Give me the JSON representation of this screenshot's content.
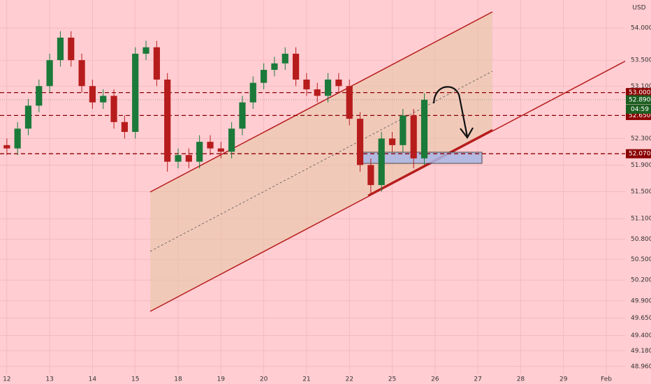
{
  "chart_data": {
    "type": "candlestick",
    "currency": "USD",
    "log_scale": true,
    "grid": true,
    "up_color": "#1b7a3a",
    "down_color": "#b71c1c",
    "x": [
      0,
      0.25,
      0.5,
      0.75,
      1,
      1.25,
      1.5,
      1.75,
      2,
      2.25,
      2.5,
      2.75,
      3,
      3.25,
      3.5,
      3.75,
      4,
      4.25,
      4.5,
      4.75,
      5,
      5.25,
      5.5,
      5.75,
      6,
      6.25,
      6.5,
      6.75,
      7,
      7.25,
      7.5,
      7.75,
      8,
      8.25,
      8.5,
      8.75,
      9,
      9.25,
      9.5,
      9.75
    ],
    "open": [
      52.2,
      52.15,
      52.45,
      52.8,
      53.1,
      53.5,
      53.85,
      53.5,
      53.1,
      52.85,
      52.95,
      52.55,
      52.4,
      53.6,
      53.7,
      53.2,
      51.95,
      52.05,
      51.95,
      52.25,
      52.15,
      52.1,
      52.45,
      52.85,
      53.15,
      53.35,
      53.45,
      53.6,
      53.2,
      53.05,
      52.95,
      53.2,
      53.1,
      52.6,
      51.9,
      51.6,
      52.3,
      52.2,
      52.65,
      52.0
    ],
    "high": [
      52.3,
      52.55,
      52.9,
      53.2,
      53.6,
      53.95,
      53.95,
      53.6,
      53.2,
      53.05,
      53.05,
      52.65,
      53.7,
      53.8,
      53.8,
      53.3,
      52.15,
      52.15,
      52.35,
      52.35,
      52.25,
      52.55,
      52.95,
      53.25,
      53.45,
      53.55,
      53.7,
      53.7,
      53.3,
      53.15,
      53.3,
      53.3,
      53.2,
      52.7,
      52.0,
      52.4,
      52.4,
      52.75,
      52.75,
      52.99
    ],
    "low": [
      52.05,
      52.05,
      52.35,
      52.7,
      53.0,
      53.4,
      53.4,
      53.0,
      52.75,
      52.75,
      52.45,
      52.3,
      52.3,
      53.5,
      53.1,
      51.8,
      51.85,
      51.85,
      51.85,
      52.05,
      52.0,
      52.0,
      52.35,
      52.75,
      53.05,
      53.25,
      53.35,
      53.1,
      52.95,
      52.85,
      52.85,
      53.0,
      52.5,
      51.8,
      51.45,
      51.5,
      52.1,
      52.1,
      51.85,
      51.9
    ],
    "close": [
      52.15,
      52.45,
      52.8,
      53.1,
      53.5,
      53.85,
      53.5,
      53.1,
      52.85,
      52.95,
      52.55,
      52.4,
      53.6,
      53.7,
      53.2,
      51.95,
      52.05,
      51.95,
      52.25,
      52.15,
      52.1,
      52.45,
      52.85,
      53.15,
      53.35,
      53.45,
      53.6,
      53.2,
      53.05,
      52.95,
      53.2,
      53.1,
      52.6,
      51.9,
      51.6,
      52.3,
      52.2,
      52.65,
      52.0,
      52.89
    ],
    "xlim": [
      -0.16,
      14.44
    ],
    "xticks": [
      {
        "value": 0,
        "label": "12"
      },
      {
        "value": 1,
        "label": "13"
      },
      {
        "value": 2,
        "label": "14"
      },
      {
        "value": 3,
        "label": "15"
      },
      {
        "value": 4,
        "label": "18"
      },
      {
        "value": 5,
        "label": "19"
      },
      {
        "value": 6,
        "label": "20"
      },
      {
        "value": 7,
        "label": "21"
      },
      {
        "value": 8,
        "label": "22"
      },
      {
        "value": 9,
        "label": "25"
      },
      {
        "value": 10,
        "label": "26"
      },
      {
        "value": 11,
        "label": "27"
      },
      {
        "value": 12,
        "label": "28"
      },
      {
        "value": 13,
        "label": "29"
      },
      {
        "value": 14,
        "label": "Feb"
      }
    ],
    "ylim": [
      48.84,
      54.44
    ],
    "yticks": [
      {
        "value": 54,
        "label": "54.000"
      },
      {
        "value": 53.5,
        "label": "53.500"
      },
      {
        "value": 53.1,
        "label": "53.100"
      },
      {
        "value": 52.3,
        "label": "52.300"
      },
      {
        "value": 51.9,
        "label": "51.900"
      },
      {
        "value": 51.5,
        "label": "51.500"
      },
      {
        "value": 51.1,
        "label": "51.100"
      },
      {
        "value": 50.8,
        "label": "50.800"
      },
      {
        "value": 50.5,
        "label": "50.500"
      },
      {
        "value": 50.2,
        "label": "50.200"
      },
      {
        "value": 49.9,
        "label": "49.900"
      },
      {
        "value": 49.65,
        "label": "49.650"
      },
      {
        "value": 49.4,
        "label": "49.400"
      },
      {
        "value": 49.18,
        "label": "49.180"
      },
      {
        "value": 48.96,
        "label": "48.960"
      }
    ],
    "price_lines": [
      {
        "value": 53,
        "label": "53.000",
        "color": "#8b0000"
      },
      {
        "value": 52.65,
        "label": "52.650",
        "color": "#8b0000"
      },
      {
        "value": 52.07,
        "label": "52.070",
        "color": "#8b0000"
      }
    ],
    "last_price": {
      "value": 52.89,
      "label": "52.890",
      "color": "#1b5e20"
    },
    "countdown": "04:59"
  }
}
